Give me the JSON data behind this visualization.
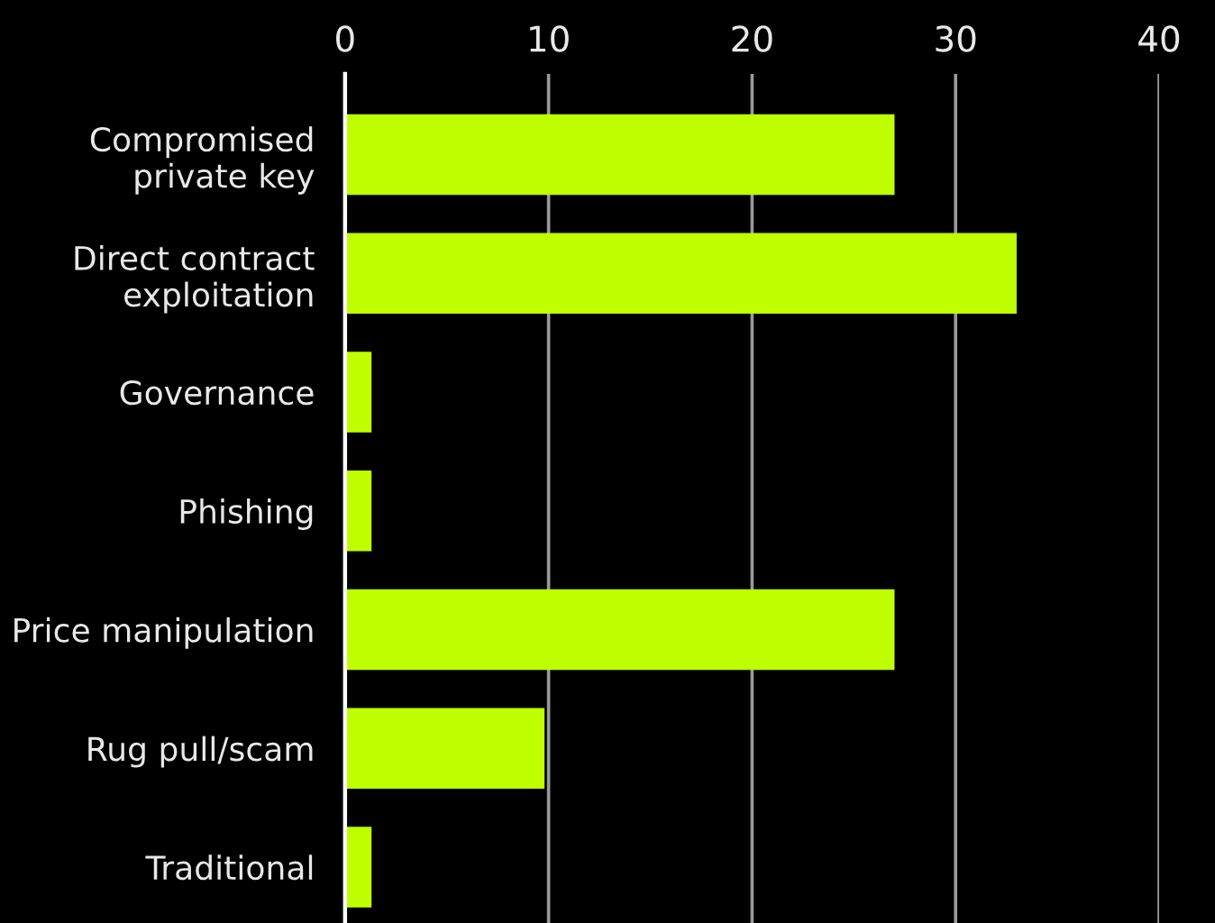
{
  "chart_data": {
    "type": "bar",
    "orientation": "horizontal",
    "categories": [
      "Compromised\nprivate key",
      "Direct contract\nexploitation",
      "Governance",
      "Phishing",
      "Price manipulation",
      "Rug pull/scam",
      "Traditional"
    ],
    "values": [
      27,
      33,
      1.3,
      1.3,
      27,
      9.8,
      1.3
    ],
    "color": "#bfff00",
    "xlim": [
      0,
      40
    ],
    "xticks": [
      0,
      10,
      20,
      30,
      40
    ],
    "grid": "x"
  }
}
